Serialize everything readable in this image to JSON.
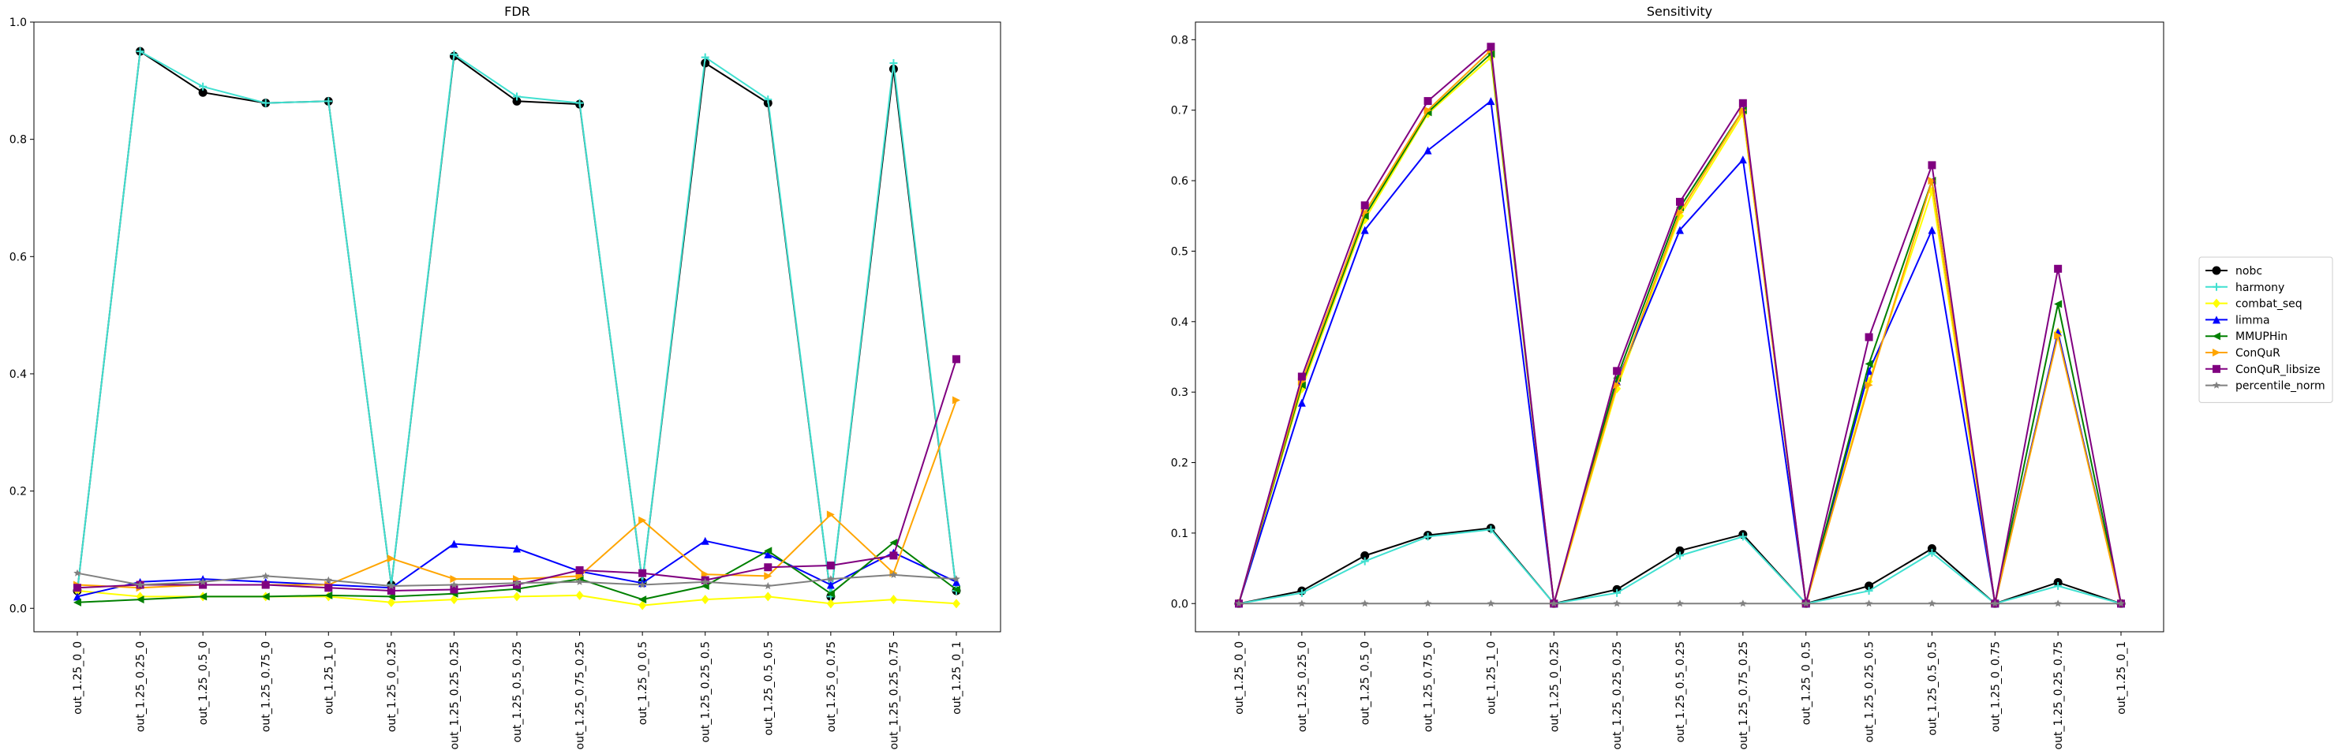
{
  "chart_data": [
    {
      "type": "line",
      "title": "FDR",
      "xlabel": "",
      "ylabel": "",
      "ylim": [
        -0.04,
        1.0
      ],
      "yticks": [
        "0.0",
        "0.2",
        "0.4",
        "0.6",
        "0.8",
        "1.0"
      ],
      "grid": false,
      "categories": [
        "out_1.25_0_0",
        "out_1.25_0.25_0",
        "out_1.25_0.5_0",
        "out_1.25_0.75_0",
        "out_1.25_1_0",
        "out_1.25_0_0.25",
        "out_1.25_0.25_0.25",
        "out_1.25_0.5_0.25",
        "out_1.25_0.75_0.25",
        "out_1.25_0_0.5",
        "out_1.25_0.25_0.5",
        "out_1.25_0.5_0.5",
        "out_1.25_0_0.75",
        "out_1.25_0.25_0.75",
        "out_1.25_0_1"
      ],
      "series": [
        {
          "name": "nobc",
          "color": "#000000",
          "marker": "circle",
          "values": [
            0.03,
            0.95,
            0.88,
            0.862,
            0.865,
            0.04,
            0.942,
            0.865,
            0.86,
            0.045,
            0.93,
            0.862,
            0.02,
            0.92,
            0.03
          ]
        },
        {
          "name": "harmony",
          "color": "#40e0d0",
          "marker": "plus",
          "values": [
            0.03,
            0.95,
            0.89,
            0.862,
            0.865,
            0.04,
            0.945,
            0.873,
            0.862,
            0.045,
            0.94,
            0.868,
            0.02,
            0.93,
            0.03
          ]
        },
        {
          "name": "combat_seq",
          "color": "#ffff00",
          "marker": "diamond",
          "values": [
            0.03,
            0.02,
            0.02,
            0.02,
            0.02,
            0.01,
            0.015,
            0.02,
            0.022,
            0.005,
            0.015,
            0.02,
            0.008,
            0.015,
            0.008
          ]
        },
        {
          "name": "limma",
          "color": "#0000ff",
          "marker": "triangle-up",
          "values": [
            0.02,
            0.045,
            0.05,
            0.045,
            0.04,
            0.035,
            0.11,
            0.102,
            0.063,
            0.043,
            0.115,
            0.092,
            0.04,
            0.095,
            0.045
          ]
        },
        {
          "name": "MMUPHin",
          "color": "#008000",
          "marker": "triangle-left",
          "values": [
            0.01,
            0.015,
            0.02,
            0.02,
            0.022,
            0.02,
            0.025,
            0.033,
            0.05,
            0.015,
            0.038,
            0.098,
            0.025,
            0.112,
            0.032
          ]
        },
        {
          "name": "ConQuR",
          "color": "#ffa500",
          "marker": "triangle-right",
          "values": [
            0.04,
            0.035,
            0.04,
            0.04,
            0.04,
            0.085,
            0.05,
            0.05,
            0.055,
            0.15,
            0.058,
            0.055,
            0.16,
            0.06,
            0.355
          ]
        },
        {
          "name": "ConQuR_libsize",
          "color": "#800080",
          "marker": "square",
          "values": [
            0.035,
            0.04,
            0.04,
            0.04,
            0.035,
            0.03,
            0.032,
            0.04,
            0.065,
            0.06,
            0.048,
            0.07,
            0.073,
            0.09,
            0.425
          ]
        },
        {
          "name": "percentile_norm",
          "color": "#808080",
          "marker": "star",
          "values": [
            0.06,
            0.04,
            0.045,
            0.055,
            0.048,
            0.038,
            0.04,
            0.043,
            0.045,
            0.04,
            0.045,
            0.038,
            0.05,
            0.057,
            0.05
          ]
        }
      ]
    },
    {
      "type": "line",
      "title": "Sensitivity",
      "xlabel": "",
      "ylabel": "",
      "ylim": [
        -0.04,
        0.825
      ],
      "yticks": [
        "0.0",
        "0.1",
        "0.2",
        "0.3",
        "0.4",
        "0.5",
        "0.6",
        "0.7",
        "0.8"
      ],
      "grid": false,
      "legend": "outside-right",
      "categories": [
        "out_1.25_0_0",
        "out_1.25_0.25_0",
        "out_1.25_0.5_0",
        "out_1.25_0.75_0",
        "out_1.25_1_0",
        "out_1.25_0_0.25",
        "out_1.25_0.25_0.25",
        "out_1.25_0.5_0.25",
        "out_1.25_0.75_0.25",
        "out_1.25_0_0.5",
        "out_1.25_0.25_0.5",
        "out_1.25_0.5_0.5",
        "out_1.25_0_0.75",
        "out_1.25_0.25_0.75",
        "out_1.25_0_1"
      ],
      "series": [
        {
          "name": "nobc",
          "color": "#000000",
          "marker": "circle",
          "values": [
            0,
            0.018,
            0.068,
            0.097,
            0.107,
            0,
            0.02,
            0.075,
            0.098,
            0,
            0.025,
            0.078,
            0,
            0.03,
            0
          ]
        },
        {
          "name": "harmony",
          "color": "#40e0d0",
          "marker": "plus",
          "values": [
            0,
            0.015,
            0.06,
            0.095,
            0.105,
            0,
            0.015,
            0.068,
            0.095,
            0,
            0.018,
            0.072,
            0,
            0.025,
            0
          ]
        },
        {
          "name": "combat_seq",
          "color": "#ffff00",
          "marker": "diamond",
          "values": [
            0,
            0.305,
            0.545,
            0.695,
            0.775,
            0,
            0.305,
            0.55,
            0.695,
            0,
            0.315,
            0.585,
            0,
            0.385,
            0
          ]
        },
        {
          "name": "limma",
          "color": "#0000ff",
          "marker": "triangle-up",
          "values": [
            0,
            0.285,
            0.53,
            0.643,
            0.713,
            0,
            0.315,
            0.53,
            0.63,
            0,
            0.33,
            0.53,
            0,
            0.385,
            0
          ]
        },
        {
          "name": "MMUPHin",
          "color": "#008000",
          "marker": "triangle-left",
          "values": [
            0,
            0.31,
            0.55,
            0.697,
            0.78,
            0,
            0.32,
            0.562,
            0.7,
            0,
            0.34,
            0.6,
            0,
            0.425,
            0
          ]
        },
        {
          "name": "ConQuR",
          "color": "#ffa500",
          "marker": "triangle-right",
          "values": [
            0,
            0.315,
            0.555,
            0.7,
            0.785,
            0,
            0.31,
            0.555,
            0.7,
            0,
            0.31,
            0.6,
            0,
            0.38,
            0
          ]
        },
        {
          "name": "ConQuR_libsize",
          "color": "#800080",
          "marker": "square",
          "values": [
            0,
            0.322,
            0.565,
            0.713,
            0.79,
            0,
            0.33,
            0.57,
            0.71,
            0,
            0.378,
            0.622,
            0,
            0.475,
            0
          ]
        },
        {
          "name": "percentile_norm",
          "color": "#808080",
          "marker": "star",
          "values": [
            0,
            0,
            0,
            0,
            0,
            0,
            0,
            0,
            0,
            0,
            0,
            0,
            0,
            0,
            0
          ]
        }
      ]
    }
  ]
}
